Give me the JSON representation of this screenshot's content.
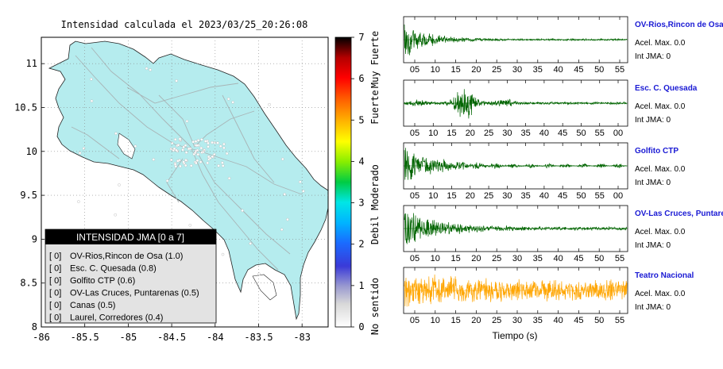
{
  "title": "Intensidad calculada el 2023/03/25_20:26:08",
  "map": {
    "x_ticks": [
      "-86",
      "-85.5",
      "-85",
      "-84.5",
      "-84",
      "-83.5",
      "-83"
    ],
    "x_values": [
      -86,
      -85.5,
      -85,
      -84.5,
      -84,
      -83.5,
      -83
    ],
    "y_ticks": [
      "8",
      "8.5",
      "9",
      "9.5",
      "10",
      "10.5",
      "11"
    ],
    "y_values": [
      8,
      8.5,
      9,
      9.5,
      10,
      10.5,
      11
    ],
    "xlim": [
      -86,
      -82.7
    ],
    "ylim": [
      8,
      11.3
    ],
    "land_color": "#b5ecee",
    "grid": true
  },
  "colorbar": {
    "ticks": [
      "0",
      "1",
      "2",
      "3",
      "4",
      "5",
      "6",
      "7"
    ],
    "labels": [
      "No sentido",
      "Debil",
      "Moderado",
      "Fuerte",
      "Muy Fuerte"
    ]
  },
  "legend": {
    "header": "INTENSIDAD JMA [0 a 7]",
    "items": [
      {
        "level": "[ 0]",
        "text": "OV-Rios,Rincon de Osa (1.0)"
      },
      {
        "level": "[ 0]",
        "text": "Esc. C. Quesada (0.8)"
      },
      {
        "level": "[ 0]",
        "text": "Golfito CTP (0.6)"
      },
      {
        "level": "[ 0]",
        "text": "OV-Las Cruces, Puntarenas (0.5)"
      },
      {
        "level": "[ 0]",
        "text": "Canas (0.5)"
      },
      {
        "level": "[ 0]",
        "text": "Laurel, Corredores (0.4)"
      }
    ]
  },
  "seismograms": [
    {
      "station": "OV-Rios,Rincon de Osa",
      "acel": "Acel. Max. 0.0",
      "int": "Int JMA: 0",
      "ticks": [
        "05",
        "10",
        "15",
        "20",
        "25",
        "30",
        "35",
        "40",
        "45",
        "50",
        "55"
      ],
      "color": "#006400"
    },
    {
      "station": "Esc. C. Quesada",
      "acel": "Acel. Max. 0.0",
      "int": "Int JMA: 0",
      "ticks": [
        "05",
        "10",
        "15",
        "20",
        "25",
        "30",
        "35",
        "40",
        "45",
        "50",
        "55",
        "00"
      ],
      "color": "#006400"
    },
    {
      "station": "Golfito CTP",
      "acel": "Acel. Max. 0.0",
      "int": "Int JMA: 0",
      "ticks": [
        "05",
        "10",
        "15",
        "20",
        "25",
        "30",
        "35",
        "40",
        "45",
        "50",
        "55",
        "00"
      ],
      "color": "#006400"
    },
    {
      "station": "OV-Las Cruces, Puntarenas",
      "acel": "Acel. Max. 0.0",
      "int": "Int JMA: 0",
      "ticks": [
        "05",
        "10",
        "15",
        "20",
        "25",
        "30",
        "35",
        "40",
        "45",
        "50",
        "55"
      ],
      "color": "#006400"
    },
    {
      "station": "Teatro Nacional",
      "acel": "Acel. Max. 0.0",
      "int": "Int JMA: 0",
      "ticks": [
        "05",
        "10",
        "15",
        "20",
        "25",
        "30",
        "35",
        "40",
        "45",
        "50",
        "55"
      ],
      "color": "#ffa500"
    }
  ],
  "xlabel": "Tiempo (s)",
  "chart_data": {
    "type": "line",
    "title": "Intensidad calculada el 2023/03/25_20:26:08",
    "xlabel": "Tiempo (s)",
    "series": [
      {
        "name": "OV-Rios,Rincon de Osa",
        "peak_acceleration": 0.0,
        "jma_intensity": 0,
        "computed_intensity": 1.0
      },
      {
        "name": "Esc. C. Quesada",
        "peak_acceleration": 0.0,
        "jma_intensity": 0,
        "computed_intensity": 0.8
      },
      {
        "name": "Golfito CTP",
        "peak_acceleration": 0.0,
        "jma_intensity": 0,
        "computed_intensity": 0.6
      },
      {
        "name": "OV-Las Cruces, Puntarenas",
        "peak_acceleration": 0.0,
        "jma_intensity": 0,
        "computed_intensity": 0.5
      },
      {
        "name": "Teatro Nacional",
        "peak_acceleration": 0.0,
        "jma_intensity": 0
      }
    ]
  }
}
